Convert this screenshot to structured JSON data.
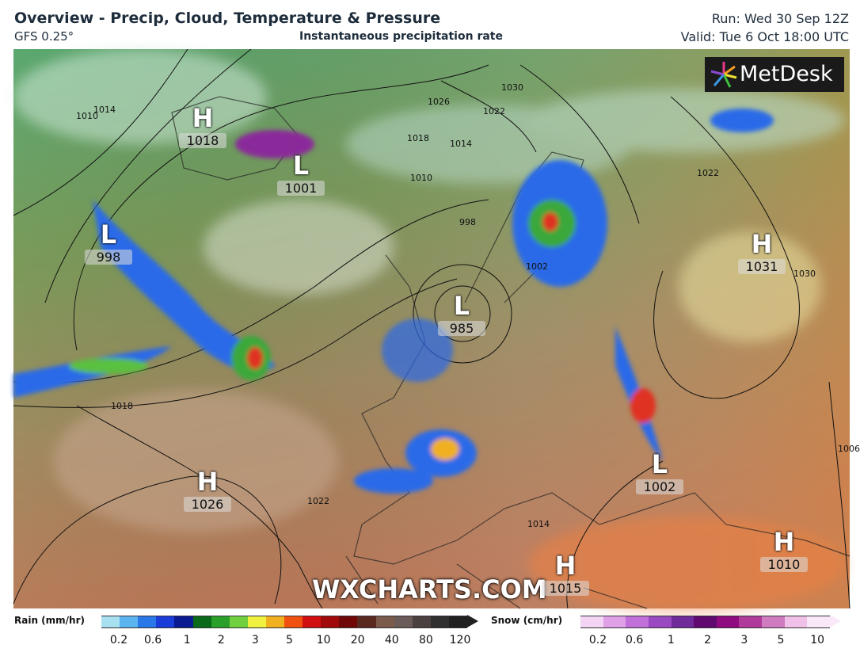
{
  "header": {
    "title": "Overview - Precip, Cloud, Temperature & Pressure",
    "model": "GFS 0.25°",
    "subtitle": "Instantaneous precipitation rate",
    "run": "Run: Wed 30 Sep 12Z",
    "valid": "Valid: Tue 6 Oct 18:00 UTC"
  },
  "logo": "MetDesk",
  "watermark": "WXCHARTS.COM",
  "pressure_centers": [
    {
      "letter": "H",
      "value": "1018"
    },
    {
      "letter": "L",
      "value": "1001"
    },
    {
      "letter": "L",
      "value": "998"
    },
    {
      "letter": "L",
      "value": "985"
    },
    {
      "letter": "H",
      "value": "1031"
    },
    {
      "letter": "H",
      "value": "1026"
    },
    {
      "letter": "L",
      "value": "1002"
    },
    {
      "letter": "H",
      "value": "1010"
    },
    {
      "letter": "H",
      "value": "1015"
    }
  ],
  "isobar_labels": [
    "1030",
    "1026",
    "1022",
    "1018",
    "1014",
    "1010",
    "998",
    "1002",
    "1018",
    "1022",
    "1014",
    "1030",
    "1006",
    "1022",
    "1010",
    "1014"
  ],
  "legend": {
    "rain": {
      "title": "Rain (mm/hr)",
      "labels": [
        "0.2",
        "0.6",
        "1",
        "2",
        "3",
        "5",
        "10",
        "20",
        "40",
        "80",
        "120"
      ],
      "colors": [
        "#a8e0f0",
        "#5ab4f0",
        "#2a78e8",
        "#1a3cd8",
        "#0a1a90",
        "#0a6a1a",
        "#2aa02a",
        "#70d040",
        "#f0f040",
        "#f0b020",
        "#f05010",
        "#d01010",
        "#a00a0a",
        "#700808",
        "#5a2a20",
        "#7a5a4a",
        "#6a5a58",
        "#4a4040",
        "#303030",
        "#202020"
      ]
    },
    "snow": {
      "title": "Snow (cm/hr)",
      "labels": [
        "0.2",
        "0.6",
        "1",
        "2",
        "3",
        "5",
        "10"
      ],
      "colors": [
        "#f4d4f4",
        "#e0a0e8",
        "#c070d8",
        "#9a4ac0",
        "#702a9a",
        "#600a70",
        "#900a80",
        "#b03a9a",
        "#d07ac0",
        "#f0c0e8",
        "#f8e8f8"
      ]
    }
  }
}
